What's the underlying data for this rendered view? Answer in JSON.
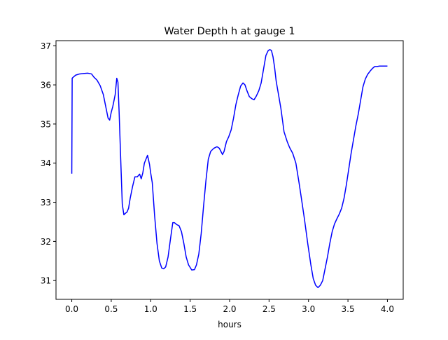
{
  "chart_data": {
    "type": "line",
    "title": "Water Depth h at gauge 1",
    "xlabel": "hours",
    "ylabel": "",
    "xlim": [
      -0.2,
      4.2
    ],
    "ylim": [
      30.52,
      37.13
    ],
    "xticks": [
      0.0,
      0.5,
      1.0,
      1.5,
      2.0,
      2.5,
      3.0,
      3.5,
      4.0
    ],
    "xtick_labels": [
      "0.0",
      "0.5",
      "1.0",
      "1.5",
      "2.0",
      "2.5",
      "3.0",
      "3.5",
      "4.0"
    ],
    "yticks": [
      31,
      32,
      33,
      34,
      35,
      36,
      37
    ],
    "ytick_labels": [
      "31",
      "32",
      "33",
      "34",
      "35",
      "36",
      "37"
    ],
    "grid": false,
    "series": [
      {
        "color": "#0000ff",
        "x": [
          0.0,
          0.005,
          0.02,
          0.05,
          0.1,
          0.15,
          0.2,
          0.25,
          0.28,
          0.32,
          0.36,
          0.4,
          0.43,
          0.46,
          0.48,
          0.5,
          0.52,
          0.55,
          0.57,
          0.585,
          0.6,
          0.62,
          0.64,
          0.66,
          0.68,
          0.7,
          0.72,
          0.74,
          0.77,
          0.8,
          0.83,
          0.86,
          0.88,
          0.9,
          0.92,
          0.94,
          0.96,
          0.985,
          1.0,
          1.02,
          1.05,
          1.08,
          1.11,
          1.14,
          1.165,
          1.19,
          1.22,
          1.25,
          1.28,
          1.3,
          1.33,
          1.36,
          1.39,
          1.42,
          1.45,
          1.48,
          1.52,
          1.555,
          1.58,
          1.61,
          1.64,
          1.67,
          1.7,
          1.73,
          1.76,
          1.8,
          1.84,
          1.87,
          1.89,
          1.91,
          1.93,
          1.96,
          1.99,
          2.02,
          2.05,
          2.08,
          2.11,
          2.14,
          2.17,
          2.195,
          2.22,
          2.25,
          2.28,
          2.31,
          2.34,
          2.37,
          2.4,
          2.43,
          2.46,
          2.49,
          2.51,
          2.53,
          2.55,
          2.57,
          2.59,
          2.62,
          2.65,
          2.69,
          2.73,
          2.76,
          2.8,
          2.84,
          2.88,
          2.91,
          2.95,
          2.99,
          3.03,
          3.06,
          3.09,
          3.12,
          3.15,
          3.18,
          3.21,
          3.24,
          3.27,
          3.3,
          3.33,
          3.36,
          3.39,
          3.42,
          3.45,
          3.48,
          3.51,
          3.54,
          3.57,
          3.6,
          3.63,
          3.66,
          3.69,
          3.72,
          3.75,
          3.78,
          3.81,
          3.84,
          3.87,
          3.9,
          3.93,
          3.96,
          4.0
        ],
        "y": [
          33.73,
          36.17,
          36.2,
          36.25,
          36.28,
          36.29,
          36.3,
          36.28,
          36.2,
          36.12,
          35.98,
          35.75,
          35.45,
          35.15,
          35.1,
          35.3,
          35.45,
          35.75,
          36.17,
          36.07,
          35.3,
          34.1,
          32.95,
          32.68,
          32.72,
          32.75,
          32.85,
          33.1,
          33.4,
          33.65,
          33.65,
          33.72,
          33.6,
          33.75,
          34.0,
          34.1,
          34.2,
          33.97,
          33.75,
          33.5,
          32.65,
          31.95,
          31.5,
          31.32,
          31.3,
          31.35,
          31.6,
          32.05,
          32.48,
          32.48,
          32.43,
          32.4,
          32.25,
          31.95,
          31.6,
          31.4,
          31.27,
          31.28,
          31.4,
          31.68,
          32.2,
          32.9,
          33.55,
          34.1,
          34.3,
          34.38,
          34.42,
          34.38,
          34.3,
          34.22,
          34.3,
          34.55,
          34.68,
          34.85,
          35.15,
          35.5,
          35.75,
          35.97,
          36.05,
          36.0,
          35.85,
          35.7,
          35.65,
          35.62,
          35.72,
          35.85,
          36.05,
          36.4,
          36.75,
          36.88,
          36.9,
          36.88,
          36.72,
          36.45,
          36.1,
          35.75,
          35.4,
          34.8,
          34.55,
          34.4,
          34.25,
          34.0,
          33.5,
          33.1,
          32.55,
          31.95,
          31.4,
          31.05,
          30.88,
          30.82,
          30.88,
          31.0,
          31.3,
          31.6,
          31.95,
          32.25,
          32.45,
          32.58,
          32.7,
          32.85,
          33.1,
          33.45,
          33.85,
          34.25,
          34.6,
          34.95,
          35.25,
          35.6,
          35.95,
          36.15,
          36.27,
          36.35,
          36.42,
          36.47,
          36.47,
          36.48,
          36.48,
          36.48,
          36.48
        ],
        "linewidth": 1.5
      }
    ]
  }
}
